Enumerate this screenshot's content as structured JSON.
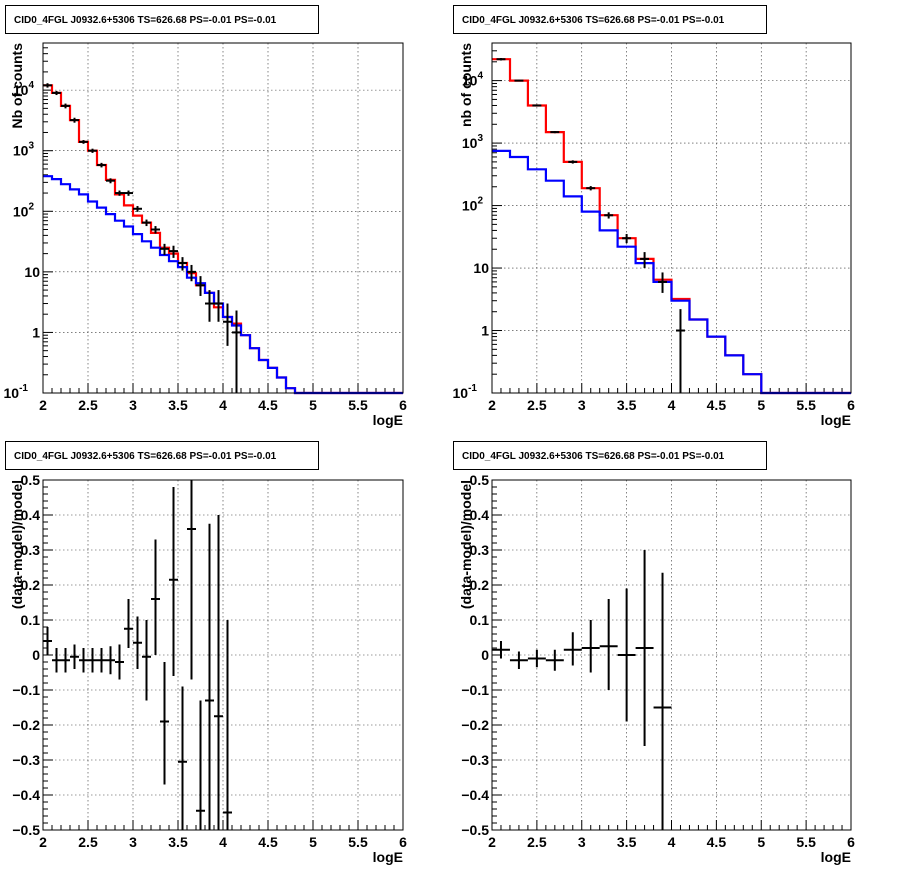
{
  "chart_data": [
    {
      "type": "line",
      "panel": "top-left",
      "title": "CID0_4FGL J0932.6+5306 TS=626.68 PS=-0.01 PS=-0.01",
      "xlabel": "logE",
      "ylabel": "Nb of counts",
      "xlim": [
        2,
        6
      ],
      "ylim": [
        0.1,
        60000
      ],
      "yscale": "log",
      "grid": true,
      "x_ticks": [
        "2",
        "2.5",
        "3",
        "3.5",
        "4",
        "4.5",
        "5",
        "5.5",
        "6"
      ],
      "y_ticks": [
        {
          "v": 0.1,
          "t": "10",
          "exp": "-1"
        },
        {
          "v": 1,
          "t": "1"
        },
        {
          "v": 10,
          "t": "10"
        },
        {
          "v": 100,
          "t": "10",
          "exp": "2"
        },
        {
          "v": 1000,
          "t": "10",
          "exp": "3"
        },
        {
          "v": 10000,
          "t": "10",
          "exp": "4"
        }
      ],
      "bin_edges": [
        2.0,
        2.1,
        2.2,
        2.3,
        2.4,
        2.5,
        2.6,
        2.7,
        2.8,
        2.9,
        3.0,
        3.1,
        3.2,
        3.3,
        3.4,
        3.5,
        3.6,
        3.7,
        3.8,
        3.9,
        4.0,
        4.1,
        4.2,
        4.3,
        4.4,
        4.5,
        4.6,
        4.7,
        4.8,
        4.9,
        5.0,
        5.1,
        5.2,
        5.3,
        5.4,
        5.5,
        5.6,
        5.7,
        5.8,
        5.9,
        6.0
      ],
      "series": [
        {
          "color": "#ff0000",
          "values": [
            12000,
            9000,
            5500,
            3200,
            1400,
            1000,
            580,
            330,
            190,
            125,
            85,
            65,
            44,
            25,
            20,
            14,
            9.5,
            6,
            4.5,
            2.6,
            1.8,
            1.4,
            0.9,
            0.55,
            0.35,
            0.26,
            0.18,
            0.12,
            0.1,
            0.1,
            0.1,
            0.1,
            0.1,
            0.1,
            0.1,
            0.1,
            0.1,
            0.1,
            0.1,
            0.1
          ]
        },
        {
          "color": "#0000ff",
          "values": [
            380,
            340,
            280,
            230,
            190,
            145,
            115,
            90,
            70,
            56,
            42,
            32,
            25,
            19,
            15,
            12,
            8,
            6.5,
            4.5,
            3,
            1.8,
            1.3,
            0.9,
            0.55,
            0.35,
            0.26,
            0.18,
            0.12,
            0.1,
            0.1,
            0.1,
            0.1,
            0.1,
            0.1,
            0.1,
            0.1,
            0.1,
            0.1,
            0.1,
            0.1
          ]
        }
      ],
      "data_points": [
        {
          "x": 2.05,
          "y": 12000,
          "lo": 11000,
          "hi": 13000
        },
        {
          "x": 2.15,
          "y": 9000,
          "lo": 8300,
          "hi": 9700
        },
        {
          "x": 2.25,
          "y": 5500,
          "lo": 5000,
          "hi": 6000
        },
        {
          "x": 2.35,
          "y": 3200,
          "lo": 2900,
          "hi": 3500
        },
        {
          "x": 2.45,
          "y": 1400,
          "lo": 1300,
          "hi": 1500
        },
        {
          "x": 2.55,
          "y": 1000,
          "lo": 920,
          "hi": 1080
        },
        {
          "x": 2.65,
          "y": 580,
          "lo": 530,
          "hi": 630
        },
        {
          "x": 2.75,
          "y": 320,
          "lo": 290,
          "hi": 350
        },
        {
          "x": 2.85,
          "y": 200,
          "lo": 180,
          "hi": 220
        },
        {
          "x": 2.95,
          "y": 200,
          "lo": 180,
          "hi": 220
        },
        {
          "x": 3.05,
          "y": 110,
          "lo": 98,
          "hi": 122
        },
        {
          "x": 3.15,
          "y": 65,
          "lo": 57,
          "hi": 73
        },
        {
          "x": 3.25,
          "y": 50,
          "lo": 43,
          "hi": 57
        },
        {
          "x": 3.35,
          "y": 24,
          "lo": 19,
          "hi": 29
        },
        {
          "x": 3.45,
          "y": 22,
          "lo": 17,
          "hi": 27
        },
        {
          "x": 3.55,
          "y": 14,
          "lo": 10.5,
          "hi": 17.5
        },
        {
          "x": 3.65,
          "y": 10,
          "lo": 7,
          "hi": 13
        },
        {
          "x": 3.75,
          "y": 6,
          "lo": 4,
          "hi": 8.5
        },
        {
          "x": 3.85,
          "y": 3,
          "lo": 1.5,
          "hi": 5
        },
        {
          "x": 3.95,
          "y": 3,
          "lo": 1.5,
          "hi": 5
        },
        {
          "x": 4.05,
          "y": 1.5,
          "lo": 0.6,
          "hi": 3
        },
        {
          "x": 4.15,
          "y": 1,
          "lo": 0.1,
          "hi": 2.3
        }
      ]
    },
    {
      "type": "line",
      "panel": "top-right",
      "title": "CID0_4FGL J0932.6+5306 TS=626.68 PS=-0.01 PS=-0.01",
      "xlabel": "logE",
      "ylabel": "nb of counts",
      "xlim": [
        2,
        6
      ],
      "ylim": [
        0.1,
        40000
      ],
      "yscale": "log",
      "grid": true,
      "x_ticks": [
        "2",
        "2.5",
        "3",
        "3.5",
        "4",
        "4.5",
        "5",
        "5.5",
        "6"
      ],
      "y_ticks": [
        {
          "v": 0.1,
          "t": "10",
          "exp": "-1"
        },
        {
          "v": 1,
          "t": "1"
        },
        {
          "v": 10,
          "t": "10"
        },
        {
          "v": 100,
          "t": "10",
          "exp": "2"
        },
        {
          "v": 1000,
          "t": "10",
          "exp": "3"
        },
        {
          "v": 10000,
          "t": "10",
          "exp": "4"
        }
      ],
      "bin_edges": [
        2.0,
        2.2,
        2.4,
        2.6,
        2.8,
        3.0,
        3.2,
        3.4,
        3.6,
        3.8,
        4.0,
        4.2,
        4.4,
        4.6,
        4.8,
        5.0,
        5.2,
        5.4,
        5.6,
        5.8,
        6.0
      ],
      "series": [
        {
          "color": "#ff0000",
          "values": [
            22000,
            10000,
            4000,
            1500,
            500,
            190,
            70,
            30,
            14,
            6.5,
            3.2,
            1.5,
            0.8,
            0.4,
            0.2,
            0.1,
            0.1,
            0.1,
            0.1,
            0.1
          ]
        },
        {
          "color": "#0000ff",
          "values": [
            750,
            600,
            380,
            250,
            140,
            80,
            40,
            22,
            12,
            6,
            3,
            1.5,
            0.8,
            0.4,
            0.2,
            0.1,
            0.1,
            0.1,
            0.1,
            0.1
          ]
        }
      ],
      "data_points": [
        {
          "x": 2.1,
          "y": 22000,
          "lo": 21000,
          "hi": 23000
        },
        {
          "x": 2.3,
          "y": 10000,
          "lo": 9700,
          "hi": 10300
        },
        {
          "x": 2.5,
          "y": 4000,
          "lo": 3850,
          "hi": 4150
        },
        {
          "x": 2.7,
          "y": 1500,
          "lo": 1440,
          "hi": 1560
        },
        {
          "x": 2.9,
          "y": 500,
          "lo": 470,
          "hi": 530
        },
        {
          "x": 3.1,
          "y": 190,
          "lo": 175,
          "hi": 205
        },
        {
          "x": 3.3,
          "y": 70,
          "lo": 62,
          "hi": 78
        },
        {
          "x": 3.5,
          "y": 30,
          "lo": 25,
          "hi": 35
        },
        {
          "x": 3.7,
          "y": 14,
          "lo": 10,
          "hi": 18
        },
        {
          "x": 3.9,
          "y": 6,
          "lo": 4,
          "hi": 8.5
        },
        {
          "x": 4.1,
          "y": 1,
          "lo": 0.1,
          "hi": 2.2
        }
      ]
    },
    {
      "type": "scatter",
      "panel": "bottom-left",
      "title": "CID0_4FGL J0932.6+5306 TS=626.68 PS=-0.01 PS=-0.01",
      "xlabel": "logE",
      "ylabel": "(data-model)/model",
      "xlim": [
        2,
        6
      ],
      "ylim": [
        -0.5,
        0.5
      ],
      "grid": true,
      "x_ticks": [
        "2",
        "2.5",
        "3",
        "3.5",
        "4",
        "4.5",
        "5",
        "5.5",
        "6"
      ],
      "y_ticks": [
        {
          "v": -0.5,
          "t": "−0.5"
        },
        {
          "v": -0.4,
          "t": "−0.4"
        },
        {
          "v": -0.3,
          "t": "−0.3"
        },
        {
          "v": -0.2,
          "t": "−0.2"
        },
        {
          "v": -0.1,
          "t": "−0.1"
        },
        {
          "v": 0,
          "t": "0"
        },
        {
          "v": 0.1,
          "t": "0.1"
        },
        {
          "v": 0.2,
          "t": "0.2"
        },
        {
          "v": 0.3,
          "t": "0.3"
        },
        {
          "v": 0.4,
          "t": "0.4"
        },
        {
          "v": 0.5,
          "t": "0.5"
        }
      ],
      "xerr": 0.05,
      "data_points": [
        {
          "x": 2.05,
          "y": 0.04,
          "lo": 0.0,
          "hi": 0.08
        },
        {
          "x": 2.15,
          "y": -0.015,
          "lo": -0.05,
          "hi": 0.02
        },
        {
          "x": 2.25,
          "y": -0.015,
          "lo": -0.05,
          "hi": 0.02
        },
        {
          "x": 2.35,
          "y": -0.005,
          "lo": -0.04,
          "hi": 0.03
        },
        {
          "x": 2.45,
          "y": -0.015,
          "lo": -0.05,
          "hi": 0.02
        },
        {
          "x": 2.55,
          "y": -0.015,
          "lo": -0.05,
          "hi": 0.02
        },
        {
          "x": 2.65,
          "y": -0.015,
          "lo": -0.05,
          "hi": 0.02
        },
        {
          "x": 2.75,
          "y": -0.015,
          "lo": -0.055,
          "hi": 0.025
        },
        {
          "x": 2.85,
          "y": -0.02,
          "lo": -0.07,
          "hi": 0.03
        },
        {
          "x": 2.95,
          "y": 0.075,
          "lo": 0.02,
          "hi": 0.16
        },
        {
          "x": 3.05,
          "y": 0.035,
          "lo": -0.04,
          "hi": 0.11
        },
        {
          "x": 3.15,
          "y": -0.005,
          "lo": -0.13,
          "hi": 0.1
        },
        {
          "x": 3.25,
          "y": 0.16,
          "lo": 0.0,
          "hi": 0.33
        },
        {
          "x": 3.35,
          "y": -0.19,
          "lo": -0.37,
          "hi": -0.02
        },
        {
          "x": 3.45,
          "y": 0.215,
          "lo": -0.06,
          "hi": 0.48
        },
        {
          "x": 3.55,
          "y": -0.305,
          "lo": -0.5,
          "hi": -0.09
        },
        {
          "x": 3.65,
          "y": 0.36,
          "lo": -0.07,
          "hi": 0.5
        },
        {
          "x": 3.75,
          "y": -0.445,
          "lo": -0.5,
          "hi": -0.13
        },
        {
          "x": 3.85,
          "y": -0.13,
          "lo": -0.5,
          "hi": 0.375
        },
        {
          "x": 3.95,
          "y": -0.175,
          "lo": -0.5,
          "hi": 0.4
        },
        {
          "x": 4.05,
          "y": -0.45,
          "lo": -0.5,
          "hi": 0.1
        }
      ]
    },
    {
      "type": "scatter",
      "panel": "bottom-right",
      "title": "CID0_4FGL J0932.6+5306 TS=626.68 PS=-0.01 PS=-0.01",
      "xlabel": "logE",
      "ylabel": "(data-model)/model",
      "xlim": [
        2,
        6
      ],
      "ylim": [
        -0.5,
        0.5
      ],
      "grid": true,
      "x_ticks": [
        "2",
        "2.5",
        "3",
        "3.5",
        "4",
        "4.5",
        "5",
        "5.5",
        "6"
      ],
      "y_ticks": [
        {
          "v": -0.5,
          "t": "−0.5"
        },
        {
          "v": -0.4,
          "t": "−0.4"
        },
        {
          "v": -0.3,
          "t": "−0.3"
        },
        {
          "v": -0.2,
          "t": "−0.2"
        },
        {
          "v": -0.1,
          "t": "−0.1"
        },
        {
          "v": 0,
          "t": "0"
        },
        {
          "v": 0.1,
          "t": "0.1"
        },
        {
          "v": 0.2,
          "t": "0.2"
        },
        {
          "v": 0.3,
          "t": "0.3"
        },
        {
          "v": 0.4,
          "t": "0.4"
        },
        {
          "v": 0.5,
          "t": "0.5"
        }
      ],
      "xerr": 0.1,
      "data_points": [
        {
          "x": 2.1,
          "y": 0.015,
          "lo": -0.01,
          "hi": 0.04
        },
        {
          "x": 2.3,
          "y": -0.015,
          "lo": -0.04,
          "hi": 0.01
        },
        {
          "x": 2.5,
          "y": -0.01,
          "lo": -0.035,
          "hi": 0.015
        },
        {
          "x": 2.7,
          "y": -0.015,
          "lo": -0.045,
          "hi": 0.015
        },
        {
          "x": 2.9,
          "y": 0.015,
          "lo": -0.03,
          "hi": 0.065
        },
        {
          "x": 3.1,
          "y": 0.02,
          "lo": -0.05,
          "hi": 0.1
        },
        {
          "x": 3.3,
          "y": 0.025,
          "lo": -0.1,
          "hi": 0.16
        },
        {
          "x": 3.5,
          "y": 0.0,
          "lo": -0.19,
          "hi": 0.19
        },
        {
          "x": 3.7,
          "y": 0.02,
          "lo": -0.26,
          "hi": 0.3
        },
        {
          "x": 3.9,
          "y": -0.15,
          "lo": -0.5,
          "hi": 0.235
        }
      ]
    }
  ]
}
